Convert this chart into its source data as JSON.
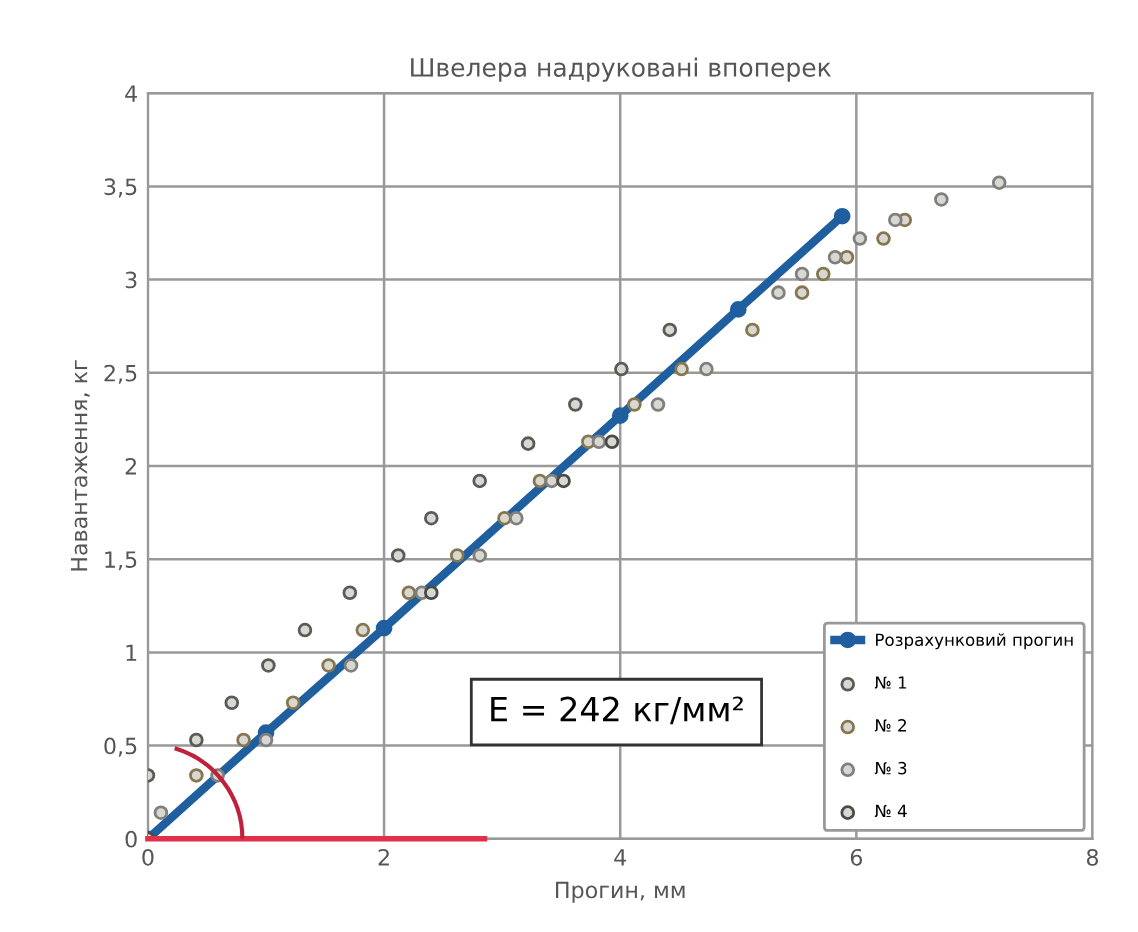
{
  "chart_data": {
    "type": "scatter",
    "title": "Швелера надруковані впоперек",
    "xlabel": "Прогин, мм",
    "ylabel": "Навантаження, кг",
    "xlim": [
      0,
      8
    ],
    "ylim": [
      0,
      4
    ],
    "xticks": [
      0,
      2,
      4,
      6,
      8
    ],
    "yticks": [
      0,
      {
        "value": 0.5,
        "label": "0,5"
      },
      1,
      {
        "value": 1.5,
        "label": "1,5"
      },
      2,
      {
        "value": 2.5,
        "label": "2,5"
      },
      3,
      {
        "value": 3.5,
        "label": "3,5"
      },
      4
    ],
    "grid": true,
    "legend": "lower right",
    "marker": "circle",
    "annotations": [
      "E = 242 кг/мм²"
    ],
    "series": [
      {
        "name": "Розрахунковий прогин",
        "type": "line",
        "color": "#1f5f9f",
        "x": [
          0,
          1,
          2,
          4,
          5,
          5.88
        ],
        "values": [
          0,
          0.57,
          1.13,
          2.27,
          2.84,
          3.34
        ]
      },
      {
        "name": "№ 1",
        "color": "#5a5a5a",
        "x": [
          0,
          0.41,
          0.71,
          1.02,
          1.33,
          1.71,
          2.12,
          2.4,
          2.81,
          3.22,
          3.62,
          4.01,
          4.42
        ],
        "values": [
          0.34,
          0.53,
          0.73,
          0.93,
          1.12,
          1.32,
          1.52,
          1.72,
          1.92,
          2.12,
          2.33,
          2.52,
          2.73
        ]
      },
      {
        "name": "№ 2",
        "color": "#857650",
        "x": [
          0.41,
          0.81,
          1.23,
          1.53,
          1.82,
          2.21,
          2.62,
          3.02,
          3.32,
          3.73,
          4.12,
          4.52,
          5.12,
          5.54,
          5.72,
          5.92,
          6.23,
          6.41
        ],
        "values": [
          0.34,
          0.53,
          0.73,
          0.93,
          1.12,
          1.32,
          1.52,
          1.72,
          1.92,
          2.13,
          2.33,
          2.52,
          2.73,
          2.93,
          3.03,
          3.12,
          3.22,
          3.32
        ]
      },
      {
        "name": "№ 3",
        "color": "#7f7f7f",
        "x": [
          0.11,
          0.59,
          1.0,
          1.72,
          2.32,
          2.81,
          3.12,
          3.42,
          3.82,
          4.32,
          4.73,
          5.34,
          5.54,
          5.82,
          6.03,
          6.33,
          6.72,
          7.21
        ],
        "values": [
          0.14,
          0.34,
          0.53,
          0.93,
          1.32,
          1.52,
          1.72,
          1.92,
          2.13,
          2.33,
          2.52,
          2.93,
          3.03,
          3.12,
          3.22,
          3.32,
          3.43,
          3.52
        ]
      },
      {
        "name": "№ 4",
        "color": "#4a4a4a",
        "x": [
          0,
          2.4,
          3.52,
          3.93
        ],
        "values": [
          0,
          1.32,
          1.92,
          2.13
        ]
      }
    ]
  }
}
